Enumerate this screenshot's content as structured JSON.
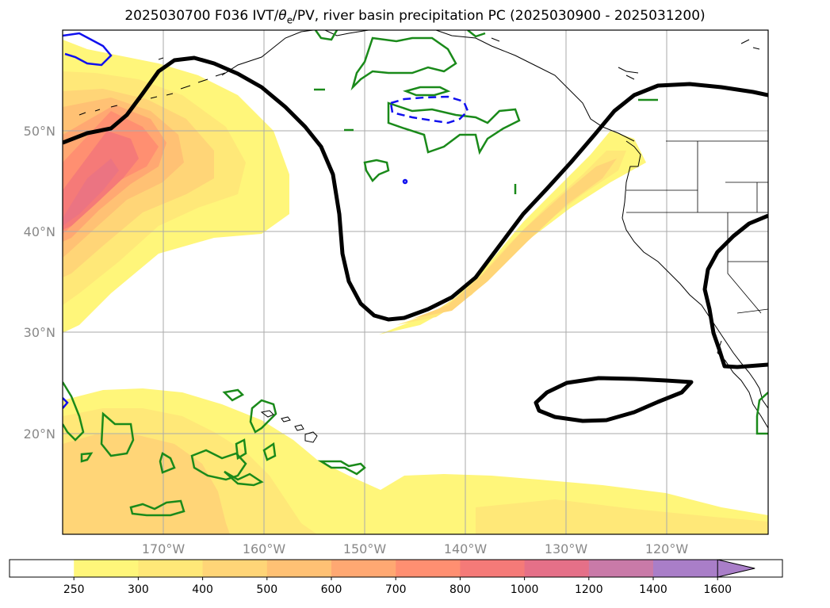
{
  "title": {
    "prefix": "2025030700 F036 IVT/",
    "theta": "θ",
    "theta_sub": "e",
    "suffix": "/PV, river basin precipitation PC (2025030900 - 2025031200)"
  },
  "map": {
    "lat_labels": [
      "50°N",
      "40°N",
      "30°N",
      "20°N"
    ],
    "lon_labels": [
      "170°W",
      "160°W",
      "150°W",
      "140°W",
      "130°W",
      "120°W"
    ],
    "layers": [
      "ivt-shading",
      "theta-e-contour",
      "pv-contours",
      "coastlines",
      "state-borders",
      "graticule"
    ]
  },
  "colorbar": {
    "ticks": [
      "250",
      "300",
      "400",
      "500",
      "600",
      "700",
      "800",
      "1000",
      "1200",
      "1400",
      "1600"
    ],
    "colors": [
      "#ffffff",
      "#fff67a",
      "#ffe878",
      "#ffd577",
      "#ffc174",
      "#ffa872",
      "#ff8f71",
      "#f57a78",
      "#e57088",
      "#c97aa8",
      "#a97ec8"
    ],
    "extend": "max"
  },
  "colors": {
    "theta_contour": "#000000",
    "pv_green": "#1a8a1a",
    "pv_blue": "#1010ee",
    "grid": "#aaaaaa"
  }
}
